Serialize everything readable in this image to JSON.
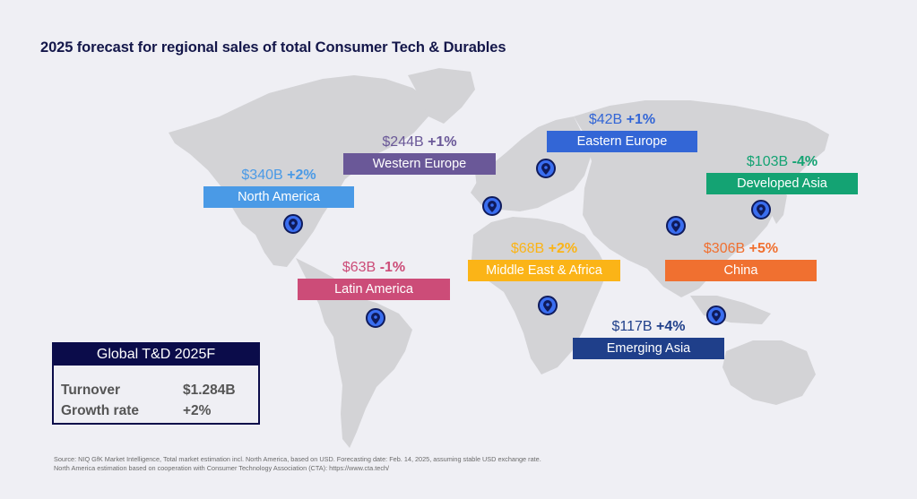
{
  "title": "2025 forecast for regional sales of total Consumer Tech & Durables",
  "regions": [
    {
      "id": "north-america",
      "name": "North America",
      "value": "$340B",
      "growth": "+2%",
      "color": "#4a9ae6"
    },
    {
      "id": "western-europe",
      "name": "Western Europe",
      "value": "$244B",
      "growth": "+1%",
      "color": "#6a5898"
    },
    {
      "id": "eastern-europe",
      "name": "Eastern Europe",
      "value": "$42B",
      "growth": "+1%",
      "color": "#3366d6"
    },
    {
      "id": "developed-asia",
      "name": "Developed Asia",
      "value": "$103B",
      "growth": "-4%",
      "color": "#14a373"
    },
    {
      "id": "latin-america",
      "name": "Latin America",
      "value": "$63B",
      "growth": "-1%",
      "color": "#cc4c78"
    },
    {
      "id": "middle-east-africa",
      "name": "Middle East & Africa",
      "value": "$68B",
      "growth": "+2%",
      "color": "#fbb417"
    },
    {
      "id": "china",
      "name": "China",
      "value": "$306B",
      "growth": "+5%",
      "color": "#f07030"
    },
    {
      "id": "emerging-asia",
      "name": "Emerging Asia",
      "value": "$117B",
      "growth": "+4%",
      "color": "#1f3f8a"
    }
  ],
  "global": {
    "title": "Global T&D 2025F",
    "turnover_label": "Turnover",
    "turnover_value": "$1.284B",
    "growth_label": "Growth rate",
    "growth_value": "+2%"
  },
  "source": {
    "line1": "Source: NIQ GfK Market Intelligence, Total market estimation incl. North America, based on USD. Forecasting date: Feb. 14, 2025, assuming stable USD exchange rate.",
    "line2": "North America estimation based on cooperation with Consumer Technology Association (CTA): https://www.cta.tech/"
  },
  "icons": {
    "pin": "map-pin-icon"
  }
}
